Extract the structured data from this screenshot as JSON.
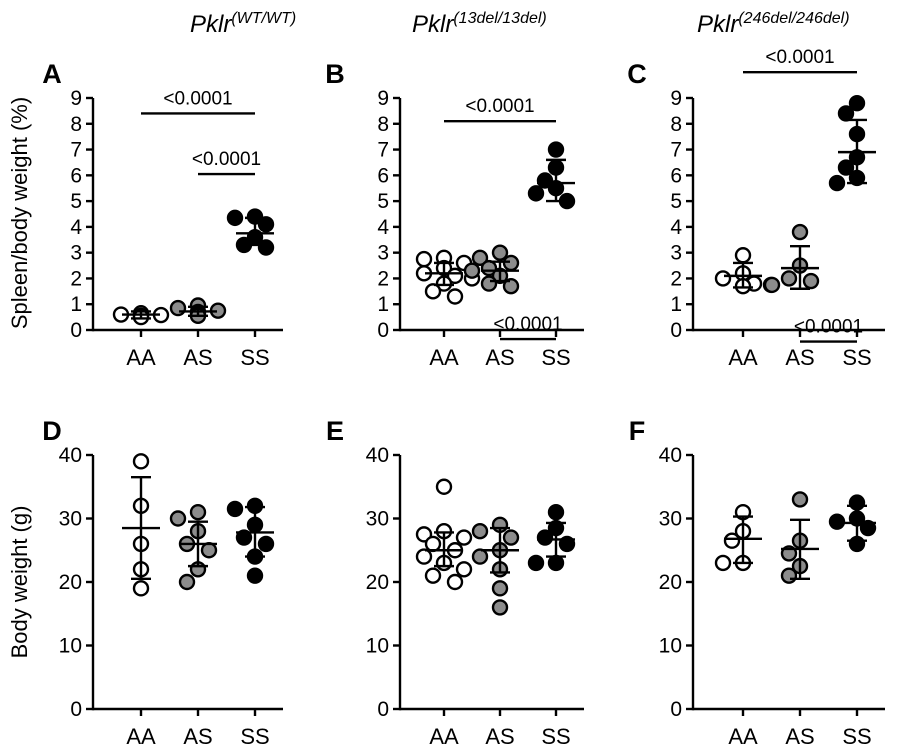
{
  "figure": {
    "column_headers": [
      {
        "base": "Pklr",
        "sup": "(WT/WT)"
      },
      {
        "base": "Pklr",
        "sup": "(13del/13del)"
      },
      {
        "base": "Pklr",
        "sup": "(246del/246del)"
      }
    ],
    "row_ylabels": [
      "Spleen/body weight (%)",
      "Body weight (g)"
    ]
  },
  "chart_data": [
    {
      "panel": "A",
      "type": "scatter",
      "ylabel": "Spleen/body weight (%)",
      "categories": [
        "AA",
        "AS",
        "SS"
      ],
      "ylim": [
        0,
        9
      ],
      "yticks": [
        0,
        1,
        2,
        3,
        4,
        5,
        6,
        7,
        8,
        9
      ],
      "fills": [
        "#ffffff",
        "#8c8c8c",
        "#000000"
      ],
      "groups": [
        {
          "category": "AA",
          "mean": 0.6,
          "sd_low": 0.45,
          "sd_high": 0.72,
          "points": [
            0.55,
            0.6,
            0.65,
            0.5,
            0.58
          ]
        },
        {
          "category": "AS",
          "mean": 0.72,
          "sd_low": 0.55,
          "sd_high": 0.9,
          "points": [
            0.85,
            0.95,
            0.6,
            0.7,
            0.75,
            0.55
          ]
        },
        {
          "category": "SS",
          "mean": 3.75,
          "sd_low": 3.3,
          "sd_high": 4.35,
          "points": [
            4.4,
            4.35,
            4.1,
            3.6,
            3.2,
            3.3
          ]
        }
      ],
      "annotations": [
        {
          "text": "<0.0001",
          "from": "AA",
          "to": "SS",
          "y": 8.4
        },
        {
          "text": "<0.0001",
          "from": "AS",
          "to": "SS",
          "y": 6.05
        }
      ]
    },
    {
      "panel": "B",
      "type": "scatter",
      "categories": [
        "AA",
        "AS",
        "SS"
      ],
      "ylim": [
        0,
        9
      ],
      "yticks": [
        0,
        1,
        2,
        3,
        4,
        5,
        6,
        7,
        8,
        9
      ],
      "fills": [
        "#ffffff",
        "#8c8c8c",
        "#000000"
      ],
      "groups": [
        {
          "category": "AA",
          "mean": 2.2,
          "sd_low": 1.75,
          "sd_high": 2.6,
          "points": [
            2.8,
            2.75,
            2.6,
            2.4,
            2.2,
            2.1,
            2.0,
            1.8,
            1.5,
            1.3
          ]
        },
        {
          "category": "AS",
          "mean": 2.3,
          "sd_low": 1.9,
          "sd_high": 2.65,
          "points": [
            3.0,
            2.8,
            2.6,
            2.4,
            2.3,
            2.1,
            1.8,
            1.7
          ]
        },
        {
          "category": "SS",
          "mean": 5.7,
          "sd_low": 5.0,
          "sd_high": 6.6,
          "points": [
            7.0,
            6.3,
            5.8,
            5.5,
            5.0,
            5.3
          ]
        }
      ],
      "annotations": [
        {
          "text": "<0.0001",
          "from": "AA",
          "to": "SS",
          "y": 8.1
        },
        {
          "text": "<0.0001",
          "from": "AS",
          "to": "SS",
          "y": -0.35
        }
      ]
    },
    {
      "panel": "C",
      "type": "scatter",
      "categories": [
        "AA",
        "AS",
        "SS"
      ],
      "ylim": [
        0,
        9
      ],
      "yticks": [
        0,
        1,
        2,
        3,
        4,
        5,
        6,
        7,
        8,
        9
      ],
      "fills": [
        "#ffffff",
        "#8c8c8c",
        "#000000"
      ],
      "groups": [
        {
          "category": "AA",
          "mean": 2.1,
          "sd_low": 1.65,
          "sd_high": 2.6,
          "points": [
            2.9,
            2.2,
            2.0,
            1.8,
            1.7,
            1.75
          ]
        },
        {
          "category": "AS",
          "mean": 2.4,
          "sd_low": 1.6,
          "sd_high": 3.25,
          "points": [
            3.8,
            2.5,
            2.0,
            1.9,
            1.75
          ]
        },
        {
          "category": "SS",
          "mean": 6.9,
          "sd_low": 5.7,
          "sd_high": 8.15,
          "points": [
            8.8,
            8.4,
            7.6,
            6.7,
            6.3,
            5.9,
            5.7
          ]
        }
      ],
      "annotations": [
        {
          "text": "<0.0001",
          "from": "AA",
          "to": "SS",
          "y": 10.0
        },
        {
          "text": "<0.0001",
          "from": "AS",
          "to": "SS",
          "y": -0.45
        }
      ]
    },
    {
      "panel": "D",
      "type": "scatter",
      "ylabel": "Body weight (g)",
      "categories": [
        "AA",
        "AS",
        "SS"
      ],
      "ylim": [
        0,
        40
      ],
      "yticks": [
        0,
        10,
        20,
        30,
        40
      ],
      "fills": [
        "#ffffff",
        "#8c8c8c",
        "#000000"
      ],
      "groups": [
        {
          "category": "AA",
          "mean": 28.5,
          "sd_low": 20.5,
          "sd_high": 36.5,
          "points": [
            39,
            32,
            26,
            22,
            19
          ]
        },
        {
          "category": "AS",
          "mean": 26,
          "sd_low": 22.5,
          "sd_high": 29.5,
          "points": [
            31,
            30,
            28,
            26,
            25,
            22,
            20
          ]
        },
        {
          "category": "SS",
          "mean": 27.8,
          "sd_low": 24,
          "sd_high": 31.8,
          "points": [
            32,
            31.5,
            29,
            27,
            26,
            24,
            21
          ]
        }
      ],
      "annotations": []
    },
    {
      "panel": "E",
      "type": "scatter",
      "categories": [
        "AA",
        "AS",
        "SS"
      ],
      "ylim": [
        0,
        40
      ],
      "yticks": [
        0,
        10,
        20,
        30,
        40
      ],
      "fills": [
        "#ffffff",
        "#8c8c8c",
        "#000000"
      ],
      "groups": [
        {
          "category": "AA",
          "mean": 25,
          "sd_low": 22.5,
          "sd_high": 27.8,
          "points": [
            35,
            28,
            27.5,
            27,
            26,
            25,
            24,
            23,
            22,
            21,
            20
          ]
        },
        {
          "category": "AS",
          "mean": 25,
          "sd_low": 21.5,
          "sd_high": 28.5,
          "points": [
            29,
            28,
            27,
            25,
            24,
            22,
            19,
            16
          ]
        },
        {
          "category": "SS",
          "mean": 26.7,
          "sd_low": 24,
          "sd_high": 29.3,
          "points": [
            31,
            28.5,
            27,
            26,
            23,
            23
          ]
        }
      ],
      "annotations": []
    },
    {
      "panel": "F",
      "type": "scatter",
      "categories": [
        "AA",
        "AS",
        "SS"
      ],
      "ylim": [
        0,
        40
      ],
      "yticks": [
        0,
        10,
        20,
        30,
        40
      ],
      "fills": [
        "#ffffff",
        "#8c8c8c",
        "#000000"
      ],
      "groups": [
        {
          "category": "AA",
          "mean": 26.8,
          "sd_low": 23,
          "sd_high": 30.3,
          "points": [
            31,
            28,
            26.5,
            23,
            23
          ]
        },
        {
          "category": "AS",
          "mean": 25.2,
          "sd_low": 20.5,
          "sd_high": 29.8,
          "points": [
            33,
            26.5,
            24.5,
            22.5,
            21
          ]
        },
        {
          "category": "SS",
          "mean": 29.3,
          "sd_low": 26.5,
          "sd_high": 32,
          "points": [
            32.5,
            30,
            29.5,
            28.5,
            26
          ]
        }
      ],
      "annotations": []
    }
  ]
}
